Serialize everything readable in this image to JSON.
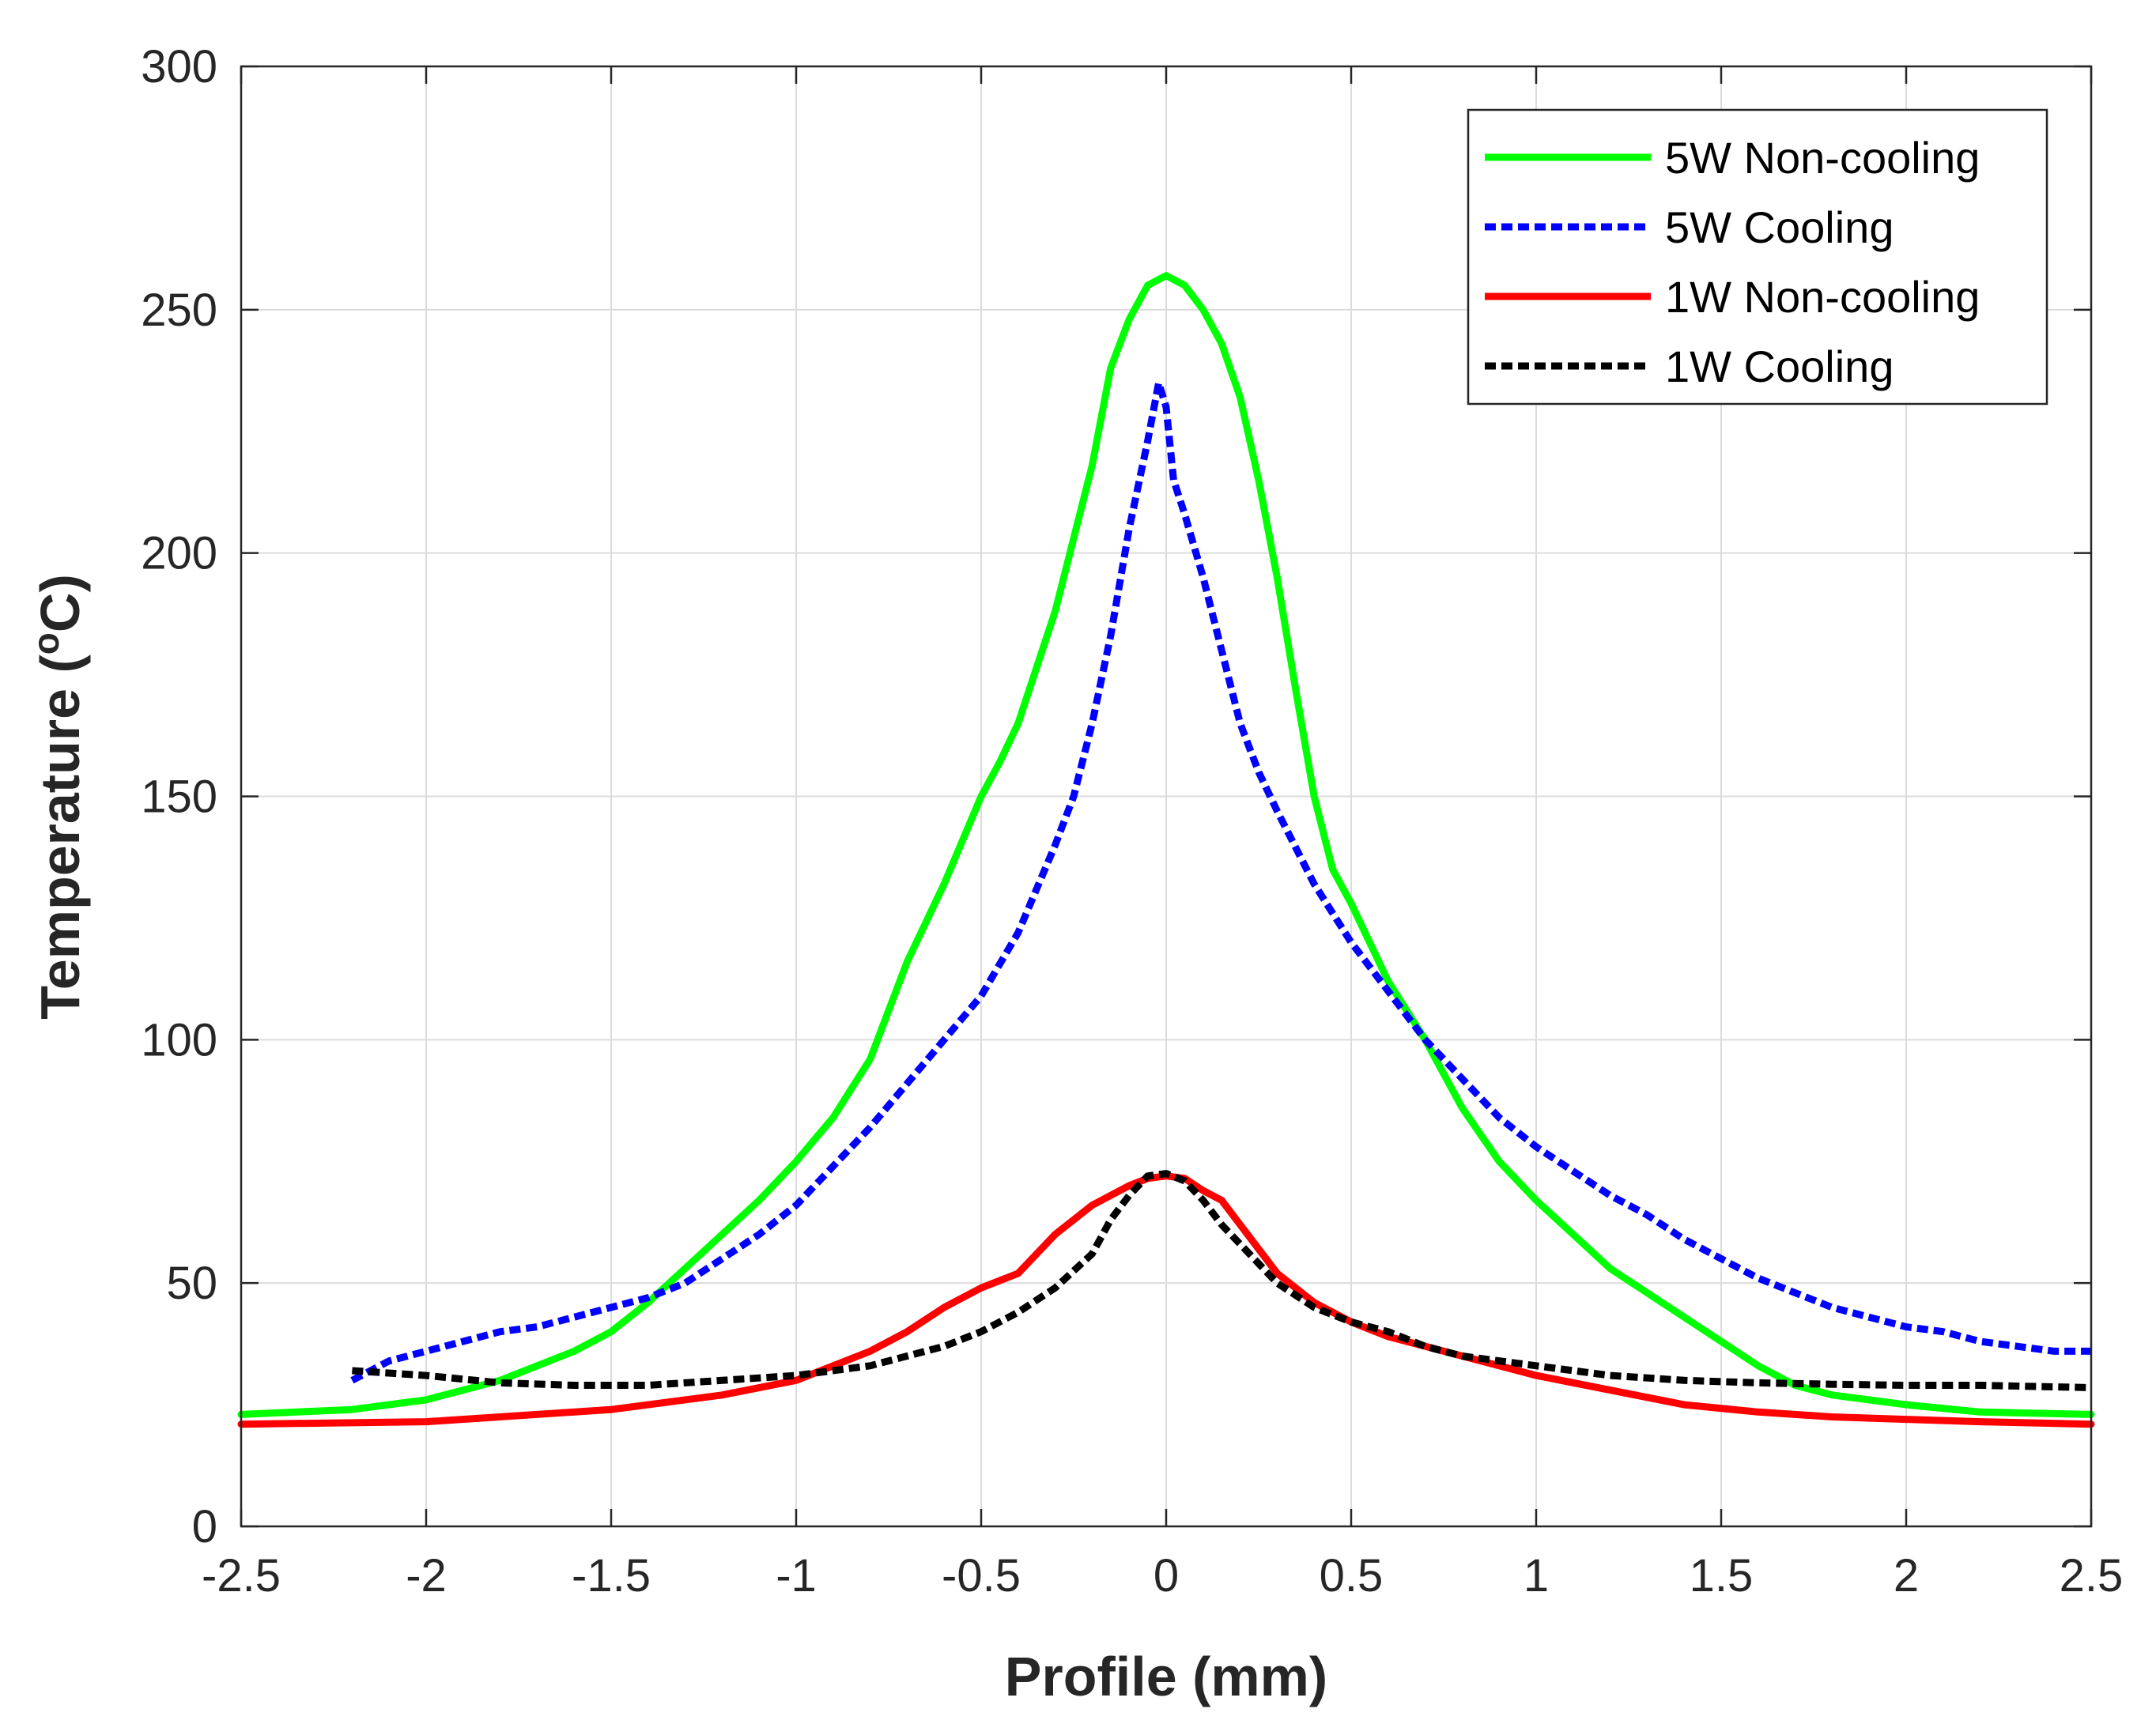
{
  "chart_data": {
    "type": "line",
    "title": "",
    "xlabel": "Profile (mm)",
    "ylabel_main": "Temperature (",
    "ylabel_sup": "o",
    "ylabel_unit": "C)",
    "xlim": [
      -2.5,
      2.5
    ],
    "ylim": [
      0,
      300
    ],
    "xticks": [
      -2.5,
      -2,
      -1.5,
      -1,
      -0.5,
      0,
      0.5,
      1,
      1.5,
      2,
      2.5
    ],
    "xtick_labels": [
      "-2.5",
      "-2",
      "-1.5",
      "-1",
      "-0.5",
      "0",
      "0.5",
      "1",
      "1.5",
      "2",
      "2.5"
    ],
    "yticks": [
      0,
      50,
      100,
      150,
      200,
      250,
      300
    ],
    "ytick_labels": [
      "0",
      "50",
      "100",
      "150",
      "200",
      "250",
      "300"
    ],
    "grid": true,
    "legend_position": "top-right",
    "series": [
      {
        "name": "5W Non-cooling",
        "color": "#00ff00",
        "style": "solid",
        "points": [
          [
            -2.5,
            23
          ],
          [
            -2.2,
            24
          ],
          [
            -2.0,
            26
          ],
          [
            -1.8,
            30
          ],
          [
            -1.6,
            36
          ],
          [
            -1.5,
            40
          ],
          [
            -1.4,
            46
          ],
          [
            -1.3,
            53
          ],
          [
            -1.2,
            60
          ],
          [
            -1.1,
            67
          ],
          [
            -1.0,
            75
          ],
          [
            -0.9,
            84
          ],
          [
            -0.8,
            96
          ],
          [
            -0.7,
            116
          ],
          [
            -0.6,
            132
          ],
          [
            -0.5,
            150
          ],
          [
            -0.45,
            157
          ],
          [
            -0.4,
            165
          ],
          [
            -0.3,
            188
          ],
          [
            -0.2,
            218
          ],
          [
            -0.15,
            238
          ],
          [
            -0.1,
            248
          ],
          [
            -0.05,
            255
          ],
          [
            0.0,
            257
          ],
          [
            0.05,
            255
          ],
          [
            0.1,
            250
          ],
          [
            0.15,
            243
          ],
          [
            0.2,
            232
          ],
          [
            0.25,
            215
          ],
          [
            0.3,
            195
          ],
          [
            0.35,
            172
          ],
          [
            0.4,
            150
          ],
          [
            0.45,
            135
          ],
          [
            0.5,
            128
          ],
          [
            0.6,
            112
          ],
          [
            0.7,
            100
          ],
          [
            0.8,
            86
          ],
          [
            0.9,
            75
          ],
          [
            1.0,
            67
          ],
          [
            1.1,
            60
          ],
          [
            1.2,
            53
          ],
          [
            1.3,
            48
          ],
          [
            1.4,
            43
          ],
          [
            1.5,
            38
          ],
          [
            1.6,
            33
          ],
          [
            1.7,
            29
          ],
          [
            1.8,
            27
          ],
          [
            2.0,
            25
          ],
          [
            2.2,
            23.5
          ],
          [
            2.5,
            23
          ]
        ]
      },
      {
        "name": "5W Cooling",
        "color": "#0000ff",
        "style": "dashed",
        "points": [
          [
            -2.2,
            30
          ],
          [
            -2.1,
            34
          ],
          [
            -2.0,
            36
          ],
          [
            -1.9,
            38
          ],
          [
            -1.8,
            40
          ],
          [
            -1.7,
            41
          ],
          [
            -1.6,
            43
          ],
          [
            -1.5,
            45
          ],
          [
            -1.4,
            47
          ],
          [
            -1.3,
            50
          ],
          [
            -1.2,
            55
          ],
          [
            -1.1,
            60
          ],
          [
            -1.0,
            66
          ],
          [
            -0.9,
            74
          ],
          [
            -0.8,
            82
          ],
          [
            -0.7,
            91
          ],
          [
            -0.6,
            100
          ],
          [
            -0.5,
            109
          ],
          [
            -0.4,
            122
          ],
          [
            -0.3,
            140
          ],
          [
            -0.25,
            150
          ],
          [
            -0.2,
            165
          ],
          [
            -0.15,
            183
          ],
          [
            -0.1,
            205
          ],
          [
            -0.05,
            223
          ],
          [
            -0.02,
            235
          ],
          [
            0.0,
            230
          ],
          [
            0.02,
            215
          ],
          [
            0.05,
            208
          ],
          [
            0.1,
            195
          ],
          [
            0.15,
            180
          ],
          [
            0.2,
            165
          ],
          [
            0.25,
            155
          ],
          [
            0.3,
            147
          ],
          [
            0.4,
            132
          ],
          [
            0.5,
            120
          ],
          [
            0.6,
            110
          ],
          [
            0.7,
            100
          ],
          [
            0.8,
            92
          ],
          [
            0.9,
            84
          ],
          [
            1.0,
            78
          ],
          [
            1.1,
            73
          ],
          [
            1.2,
            68
          ],
          [
            1.3,
            64
          ],
          [
            1.4,
            59
          ],
          [
            1.5,
            55
          ],
          [
            1.6,
            51
          ],
          [
            1.7,
            48
          ],
          [
            1.8,
            45
          ],
          [
            1.9,
            43
          ],
          [
            2.0,
            41
          ],
          [
            2.1,
            40
          ],
          [
            2.2,
            38
          ],
          [
            2.3,
            37
          ],
          [
            2.4,
            36
          ],
          [
            2.5,
            36
          ]
        ]
      },
      {
        "name": "1W Non-cooling",
        "color": "#ff0000",
        "style": "solid",
        "points": [
          [
            -2.5,
            21
          ],
          [
            -2.0,
            21.5
          ],
          [
            -1.5,
            24
          ],
          [
            -1.2,
            27
          ],
          [
            -1.0,
            30
          ],
          [
            -0.8,
            36
          ],
          [
            -0.7,
            40
          ],
          [
            -0.6,
            45
          ],
          [
            -0.5,
            49
          ],
          [
            -0.4,
            52
          ],
          [
            -0.3,
            60
          ],
          [
            -0.2,
            66
          ],
          [
            -0.1,
            70
          ],
          [
            -0.05,
            71.5
          ],
          [
            0.0,
            72
          ],
          [
            0.05,
            71.5
          ],
          [
            0.1,
            69
          ],
          [
            0.15,
            67
          ],
          [
            0.2,
            62
          ],
          [
            0.25,
            57
          ],
          [
            0.3,
            52
          ],
          [
            0.4,
            46
          ],
          [
            0.5,
            42
          ],
          [
            0.6,
            39
          ],
          [
            0.7,
            37
          ],
          [
            0.8,
            35
          ],
          [
            1.0,
            31
          ],
          [
            1.2,
            28
          ],
          [
            1.4,
            25
          ],
          [
            1.6,
            23.5
          ],
          [
            1.8,
            22.5
          ],
          [
            2.0,
            22
          ],
          [
            2.2,
            21.5
          ],
          [
            2.5,
            21
          ]
        ]
      },
      {
        "name": "1W Cooling",
        "color": "#000000",
        "style": "dashed",
        "points": [
          [
            -2.2,
            32
          ],
          [
            -2.0,
            31
          ],
          [
            -1.8,
            29.5
          ],
          [
            -1.6,
            29
          ],
          [
            -1.4,
            29
          ],
          [
            -1.2,
            30
          ],
          [
            -1.0,
            31
          ],
          [
            -0.8,
            33
          ],
          [
            -0.6,
            37
          ],
          [
            -0.5,
            40
          ],
          [
            -0.4,
            44
          ],
          [
            -0.3,
            49
          ],
          [
            -0.2,
            56
          ],
          [
            -0.15,
            63
          ],
          [
            -0.1,
            68
          ],
          [
            -0.05,
            72
          ],
          [
            0.0,
            72.5
          ],
          [
            0.05,
            71
          ],
          [
            0.1,
            67
          ],
          [
            0.15,
            62
          ],
          [
            0.2,
            58
          ],
          [
            0.3,
            50
          ],
          [
            0.4,
            45
          ],
          [
            0.5,
            42
          ],
          [
            0.6,
            40
          ],
          [
            0.7,
            37
          ],
          [
            0.8,
            35
          ],
          [
            1.0,
            33
          ],
          [
            1.2,
            31
          ],
          [
            1.4,
            30
          ],
          [
            1.6,
            29.5
          ],
          [
            1.8,
            29.2
          ],
          [
            2.0,
            29
          ],
          [
            2.2,
            29
          ],
          [
            2.5,
            28.5
          ]
        ]
      }
    ]
  }
}
